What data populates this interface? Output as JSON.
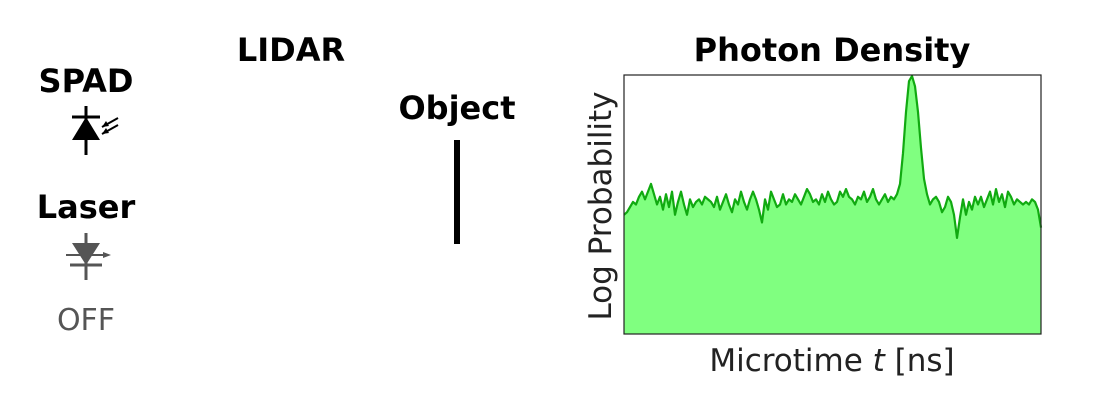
{
  "diagram": {
    "title": "LIDAR",
    "spad_label": "SPAD",
    "laser_label": "Laser",
    "laser_status": "OFF",
    "object_label": "Object"
  },
  "colors": {
    "fill": "#80ff80",
    "line": "#11aa11",
    "laser_off": "#555555"
  },
  "chart_data": {
    "type": "area",
    "title": "Photon Density",
    "xlabel_prefix": "Microtime ",
    "xlabel_var": "t",
    "xlabel_suffix": " [ns]",
    "ylabel": "Log Probability",
    "ylim": [
      0,
      1
    ],
    "grid": false,
    "x": [
      0,
      1,
      2,
      3,
      4,
      5,
      6,
      7,
      8,
      9,
      10,
      11,
      12,
      13,
      14,
      15,
      16,
      17,
      18,
      19,
      20,
      21,
      22,
      23,
      24,
      25,
      26,
      27,
      28,
      29,
      30,
      31,
      32,
      33,
      34,
      35,
      36,
      37,
      38,
      39,
      40,
      41,
      42,
      43,
      44,
      45,
      46,
      47,
      48,
      49,
      50,
      51,
      52,
      53,
      54,
      55,
      56,
      57,
      58,
      59,
      60,
      61,
      62,
      63,
      64,
      65,
      66,
      67,
      68,
      69,
      70,
      71,
      72,
      73,
      74,
      75,
      76,
      77,
      78,
      79,
      80,
      81,
      82,
      83,
      84,
      85,
      86,
      87,
      88,
      89,
      90,
      91,
      92,
      93,
      94,
      95,
      96,
      97,
      98,
      99,
      100,
      101,
      102,
      103,
      104,
      105,
      106,
      107,
      108,
      109,
      110,
      111,
      112,
      113,
      114,
      115,
      116,
      117,
      118,
      119,
      120,
      121,
      122,
      123,
      124,
      125,
      126,
      127,
      128,
      129,
      130,
      131,
      132,
      133,
      134,
      135,
      136,
      137,
      138,
      139
    ],
    "values": [
      0.46,
      0.47,
      0.49,
      0.51,
      0.5,
      0.53,
      0.55,
      0.52,
      0.55,
      0.58,
      0.54,
      0.5,
      0.53,
      0.48,
      0.54,
      0.49,
      0.55,
      0.46,
      0.51,
      0.55,
      0.5,
      0.46,
      0.52,
      0.49,
      0.51,
      0.52,
      0.5,
      0.53,
      0.52,
      0.51,
      0.49,
      0.53,
      0.48,
      0.51,
      0.54,
      0.5,
      0.47,
      0.52,
      0.5,
      0.55,
      0.51,
      0.48,
      0.52,
      0.55,
      0.52,
      0.48,
      0.43,
      0.52,
      0.48,
      0.55,
      0.52,
      0.49,
      0.5,
      0.54,
      0.5,
      0.52,
      0.51,
      0.54,
      0.52,
      0.5,
      0.53,
      0.56,
      0.54,
      0.51,
      0.52,
      0.5,
      0.54,
      0.51,
      0.55,
      0.52,
      0.5,
      0.51,
      0.55,
      0.53,
      0.56,
      0.53,
      0.52,
      0.5,
      0.53,
      0.52,
      0.55,
      0.51,
      0.53,
      0.56,
      0.52,
      0.5,
      0.52,
      0.54,
      0.51,
      0.53,
      0.52,
      0.54,
      0.58,
      0.7,
      0.86,
      0.98,
      1.0,
      0.96,
      0.86,
      0.72,
      0.6,
      0.54,
      0.5,
      0.52,
      0.53,
      0.51,
      0.47,
      0.49,
      0.53,
      0.51,
      0.46,
      0.37,
      0.45,
      0.52,
      0.46,
      0.51,
      0.48,
      0.53,
      0.5,
      0.53,
      0.49,
      0.52,
      0.55,
      0.5,
      0.56,
      0.51,
      0.54,
      0.49,
      0.55,
      0.53,
      0.5,
      0.52,
      0.51,
      0.5,
      0.51,
      0.5,
      0.52,
      0.51,
      0.48,
      0.41
    ]
  }
}
